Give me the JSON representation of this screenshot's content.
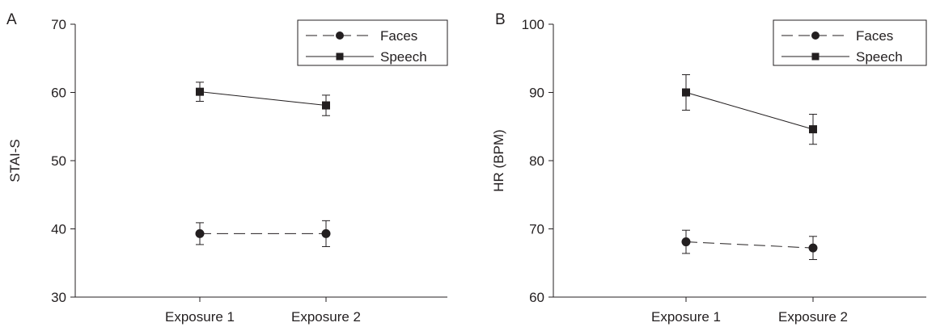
{
  "chart_data": [
    {
      "panel_label": "A",
      "type": "line",
      "ylabel": "STAI-S",
      "xlabel": "",
      "categories": [
        "Exposure 1",
        "Exposure 2"
      ],
      "ylim": [
        30,
        70
      ],
      "yticks": [
        "30",
        "40",
        "50",
        "60",
        "70"
      ],
      "legend_position": "top-right",
      "grid": false,
      "series": [
        {
          "name": "Faces",
          "marker": "circle",
          "line_style": "dashed",
          "values": [
            39.3,
            39.3
          ],
          "error": [
            1.6,
            1.9
          ]
        },
        {
          "name": "Speech",
          "marker": "square",
          "line_style": "solid",
          "values": [
            60.1,
            58.1
          ],
          "error": [
            1.4,
            1.5
          ]
        }
      ]
    },
    {
      "panel_label": "B",
      "type": "line",
      "ylabel": "HR (BPM)",
      "xlabel": "",
      "categories": [
        "Exposure 1",
        "Exposure 2"
      ],
      "ylim": [
        60,
        100
      ],
      "yticks": [
        "60",
        "70",
        "80",
        "90",
        "100"
      ],
      "legend_position": "top-right",
      "grid": false,
      "series": [
        {
          "name": "Faces",
          "marker": "circle",
          "line_style": "dashed",
          "values": [
            68.1,
            67.2
          ],
          "error": [
            1.7,
            1.7
          ]
        },
        {
          "name": "Speech",
          "marker": "square",
          "line_style": "solid",
          "values": [
            90.0,
            84.6
          ],
          "error": [
            2.6,
            2.2
          ]
        }
      ]
    }
  ]
}
